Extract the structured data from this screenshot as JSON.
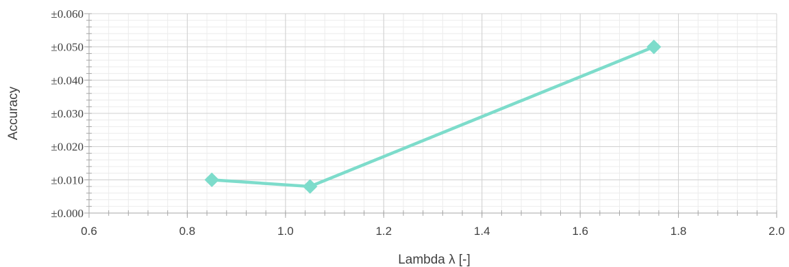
{
  "chart_data": {
    "type": "line",
    "title": "",
    "xlabel": "Lambda λ [-]",
    "ylabel": "Accuracy",
    "xlim": [
      0.6,
      2.0
    ],
    "ylim": [
      0.0,
      0.06
    ],
    "x_ticks": [
      0.6,
      0.8,
      1.0,
      1.2,
      1.4,
      1.6,
      1.8,
      2.0
    ],
    "x_tick_labels": [
      "0.6",
      "0.8",
      "1.0",
      "1.2",
      "1.4",
      "1.6",
      "1.8",
      "2.0"
    ],
    "y_ticks": [
      0.0,
      0.01,
      0.02,
      0.03,
      0.04,
      0.05,
      0.06
    ],
    "y_tick_labels": [
      "±0.000",
      "±0.010",
      "±0.020",
      "±0.030",
      "±0.040",
      "±0.050",
      "±0.060"
    ],
    "grid": true,
    "minor_grid": true,
    "legend": "none",
    "marker": "diamond",
    "color": "#7ddccb",
    "series": [
      {
        "x": [
          0.85,
          1.05,
          1.75
        ],
        "y": [
          0.01,
          0.008,
          0.05
        ]
      }
    ]
  }
}
